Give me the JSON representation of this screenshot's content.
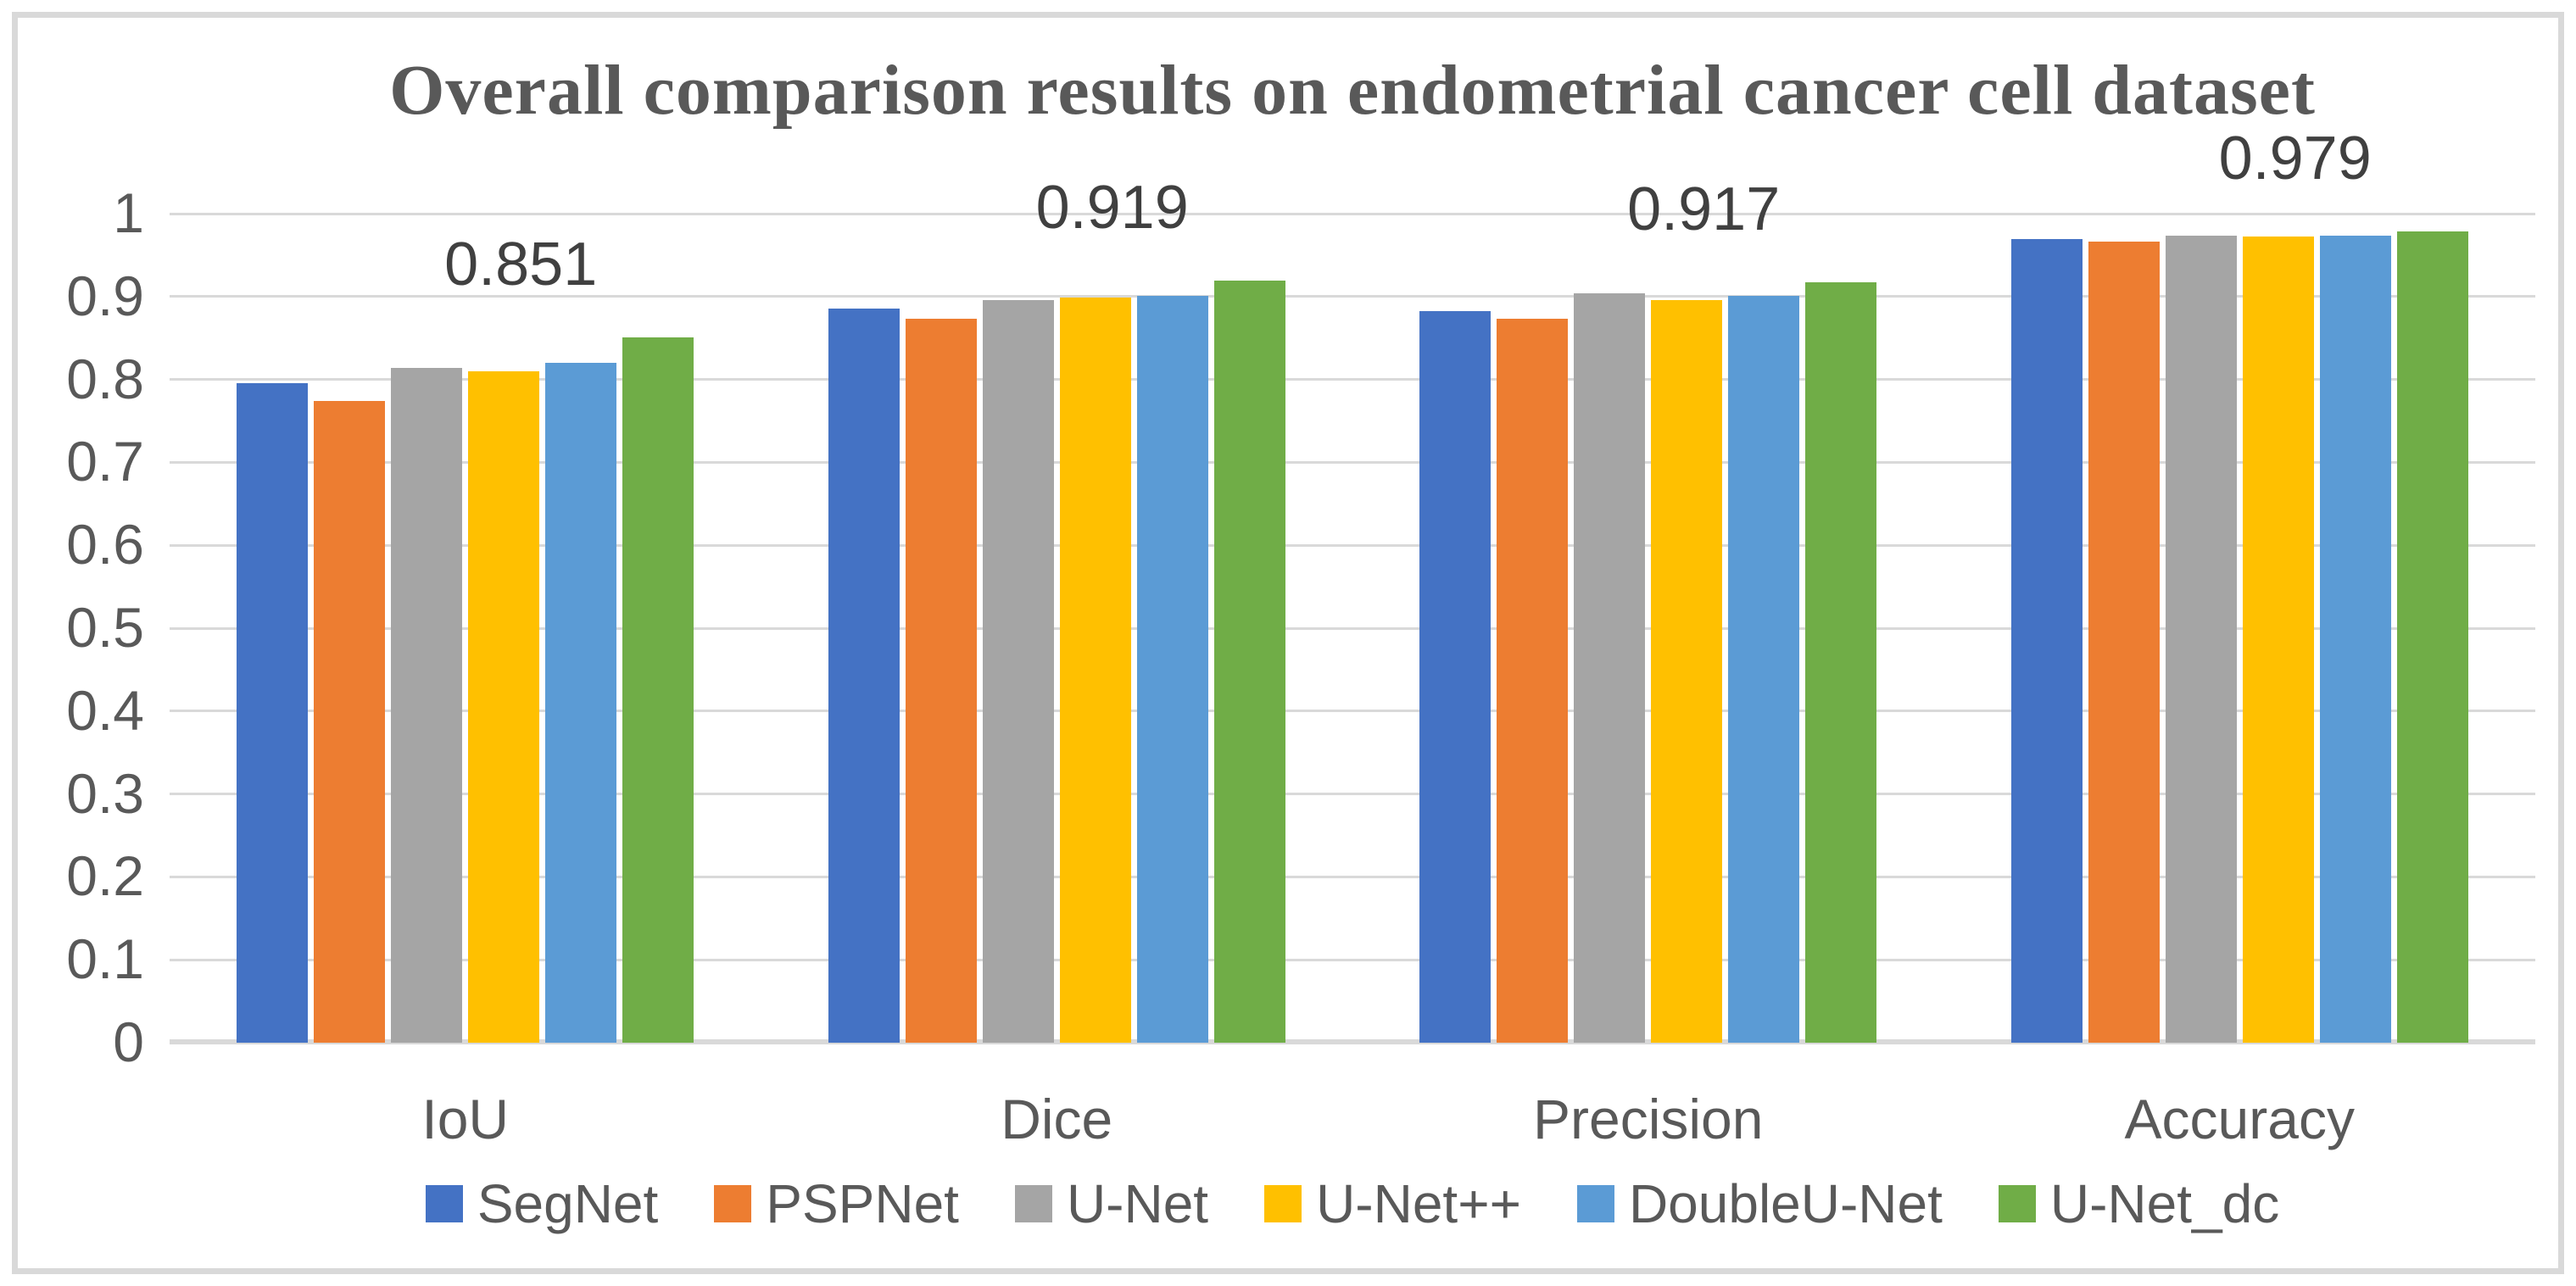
{
  "title": "Overall comparison results on endometrial cancer cell dataset",
  "colors": {
    "border": "#D9D9D9",
    "gridline": "#D9D9D9",
    "axis_text": "#595959",
    "title_text": "#595959",
    "data_label_text": "#404040",
    "background": "#FFFFFF"
  },
  "y_axis": {
    "ticks": [
      "1",
      "0.9",
      "0.8",
      "0.7",
      "0.6",
      "0.5",
      "0.4",
      "0.3",
      "0.2",
      "0.1",
      "0"
    ],
    "tick_values": [
      1,
      0.9,
      0.8,
      0.7,
      0.6,
      0.5,
      0.4,
      0.3,
      0.2,
      0.1,
      0
    ]
  },
  "chart_data": {
    "type": "bar",
    "title": "Overall comparison results on endometrial cancer cell dataset",
    "categories": [
      "IoU",
      "Dice",
      "Precision",
      "Accuracy"
    ],
    "series": [
      {
        "name": "SegNet",
        "color": "#4472C4",
        "values": [
          0.796,
          0.885,
          0.882,
          0.969
        ]
      },
      {
        "name": "PSPNet",
        "color": "#ED7D31",
        "values": [
          0.774,
          0.873,
          0.873,
          0.966
        ]
      },
      {
        "name": "U-Net",
        "color": "#A5A5A5",
        "values": [
          0.814,
          0.896,
          0.904,
          0.973
        ]
      },
      {
        "name": "U-Net++",
        "color": "#FFC000",
        "values": [
          0.81,
          0.899,
          0.896,
          0.972
        ]
      },
      {
        "name": "DoubleU-Net",
        "color": "#5B9BD5",
        "values": [
          0.82,
          0.901,
          0.901,
          0.973
        ]
      },
      {
        "name": "U-Net_dc",
        "color": "#70AD47",
        "values": [
          0.851,
          0.919,
          0.917,
          0.979
        ]
      }
    ],
    "data_labels": [
      {
        "category_index": 0,
        "series_index": 5,
        "text": "0.851"
      },
      {
        "category_index": 1,
        "series_index": 5,
        "text": "0.919"
      },
      {
        "category_index": 2,
        "series_index": 5,
        "text": "0.917"
      },
      {
        "category_index": 3,
        "series_index": 5,
        "text": "0.979"
      }
    ],
    "xlabel": "",
    "ylabel": "",
    "ylim": [
      0,
      1
    ],
    "grid": true,
    "legend_position": "bottom"
  }
}
